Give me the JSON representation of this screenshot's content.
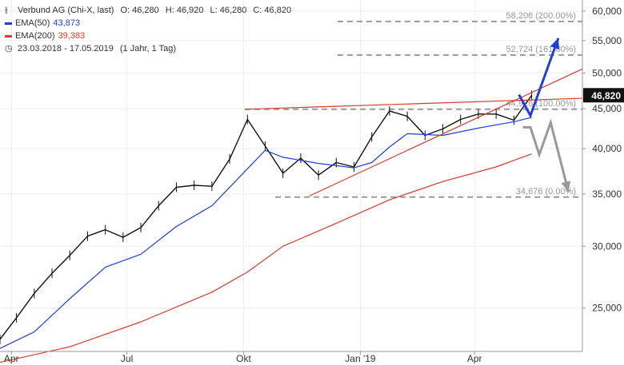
{
  "header": {
    "instrument": "Verbund AG (Chi-X, last)",
    "open": "O: 46,280",
    "high": "H: 46,920",
    "low": "L: 46,280",
    "close": "C: 46,820",
    "ema50_label": "EMA(50)",
    "ema50_value": "43,873",
    "ema200_label": "EMA(200)",
    "ema200_value": "39,383",
    "period": "23.03.2018 - 17.05.2019",
    "interval": "(1 Jahr, 1 Tag)",
    "candles_icon": "candlestick-icon",
    "clock_icon": "clock-icon"
  },
  "chart_data": {
    "type": "line",
    "y_scale": "log",
    "ylim": [
      22000,
      62000
    ],
    "y_ticks": [
      {
        "value": 25000,
        "label": "25,000"
      },
      {
        "value": 30000,
        "label": "30,000"
      },
      {
        "value": 35000,
        "label": "35,000"
      },
      {
        "value": 40000,
        "label": "40,000"
      },
      {
        "value": 45000,
        "label": "45,000"
      },
      {
        "value": 50000,
        "label": "50,000"
      },
      {
        "value": 55000,
        "label": "55,000"
      },
      {
        "value": 60000,
        "label": "60,000"
      }
    ],
    "x_ticks": [
      {
        "date": "2018-04-01",
        "label": "Apr"
      },
      {
        "date": "2018-07-01",
        "label": "Jul"
      },
      {
        "date": "2018-10-01",
        "label": "Okt"
      },
      {
        "date": "2019-01-01",
        "label": "Jan '19"
      },
      {
        "date": "2019-04-01",
        "label": "Apr"
      }
    ],
    "xlim": [
      "2018-03-23",
      "2019-06-25"
    ],
    "last_price": {
      "value": 46820,
      "label": "46,820"
    },
    "series": [
      {
        "name": "Verbund AG",
        "color": "#111111",
        "points": [
          [
            "2018-03-23",
            22800
          ],
          [
            "2018-04-05",
            24300
          ],
          [
            "2018-04-19",
            26100
          ],
          [
            "2018-05-03",
            27700
          ],
          [
            "2018-05-17",
            29200
          ],
          [
            "2018-05-31",
            30900
          ],
          [
            "2018-06-14",
            31500
          ],
          [
            "2018-06-28",
            30800
          ],
          [
            "2018-07-12",
            31700
          ],
          [
            "2018-07-26",
            33800
          ],
          [
            "2018-08-09",
            35700
          ],
          [
            "2018-08-23",
            35900
          ],
          [
            "2018-09-06",
            35800
          ],
          [
            "2018-09-20",
            38800
          ],
          [
            "2018-10-04",
            43600
          ],
          [
            "2018-10-18",
            40300
          ],
          [
            "2018-11-01",
            37200
          ],
          [
            "2018-11-15",
            38900
          ],
          [
            "2018-11-29",
            37000
          ],
          [
            "2018-12-13",
            38400
          ],
          [
            "2018-12-27",
            37900
          ],
          [
            "2019-01-10",
            41400
          ],
          [
            "2019-01-24",
            44700
          ],
          [
            "2019-02-07",
            44000
          ],
          [
            "2019-02-21",
            41600
          ],
          [
            "2019-03-07",
            42400
          ],
          [
            "2019-03-21",
            43600
          ],
          [
            "2019-04-04",
            44300
          ],
          [
            "2019-04-18",
            44300
          ],
          [
            "2019-05-02",
            43500
          ],
          [
            "2019-05-16",
            46820
          ]
        ]
      },
      {
        "name": "EMA(50)",
        "color": "#1f3fd8",
        "points": [
          [
            "2018-03-23",
            22200
          ],
          [
            "2018-04-19",
            23300
          ],
          [
            "2018-05-17",
            25700
          ],
          [
            "2018-06-14",
            28200
          ],
          [
            "2018-07-12",
            29300
          ],
          [
            "2018-08-09",
            31800
          ],
          [
            "2018-09-06",
            33800
          ],
          [
            "2018-10-04",
            37700
          ],
          [
            "2018-10-18",
            39800
          ],
          [
            "2018-11-01",
            39000
          ],
          [
            "2018-11-29",
            38300
          ],
          [
            "2018-12-27",
            37800
          ],
          [
            "2019-01-10",
            38400
          ],
          [
            "2019-01-24",
            40200
          ],
          [
            "2019-02-07",
            41800
          ],
          [
            "2019-03-07",
            41600
          ],
          [
            "2019-04-04",
            42500
          ],
          [
            "2019-05-02",
            43300
          ],
          [
            "2019-05-16",
            43873
          ]
        ]
      },
      {
        "name": "EMA(200)",
        "color": "#d93a2b",
        "points": [
          [
            "2018-03-23",
            21300
          ],
          [
            "2018-05-17",
            22300
          ],
          [
            "2018-07-12",
            24000
          ],
          [
            "2018-09-06",
            26200
          ],
          [
            "2018-10-04",
            27800
          ],
          [
            "2018-11-01",
            30000
          ],
          [
            "2018-12-13",
            32100
          ],
          [
            "2019-01-24",
            34400
          ],
          [
            "2019-03-07",
            36300
          ],
          [
            "2019-04-18",
            37900
          ],
          [
            "2019-05-16",
            39383
          ]
        ]
      }
    ],
    "levels": [
      {
        "value": 58206,
        "label": "58,206 (200.00%)",
        "from": "2018-12-14",
        "to": "2019-06-25"
      },
      {
        "value": 52724,
        "label": "52,724 (161.80%)",
        "from": "2018-12-14",
        "to": "2019-06-25"
      },
      {
        "value": 44926,
        "label": "44,926 (100.00%)",
        "from": "2018-10-02",
        "to": "2019-06-25"
      },
      {
        "value": 34676,
        "label": "34,676 (0.00%)",
        "from": "2018-10-26",
        "to": "2019-06-25"
      }
    ],
    "trendlines": [
      {
        "color": "#d93a2b",
        "from": [
          "2018-10-02",
          44926
        ],
        "to": [
          "2019-06-25",
          46400
        ]
      },
      {
        "color": "#d93a2b",
        "from": [
          "2018-11-22",
          34800
        ],
        "to": [
          "2019-06-25",
          50600
        ]
      }
    ],
    "projections": [
      {
        "color": "#1f3fd8",
        "points": [
          [
            "2019-05-06",
            46900
          ],
          [
            "2019-05-15",
            44100
          ],
          [
            "2019-06-06",
            55400
          ]
        ]
      },
      {
        "color": "#999999",
        "points": [
          [
            "2019-05-09",
            42600
          ],
          [
            "2019-05-15",
            42600
          ],
          [
            "2019-05-22",
            39300
          ],
          [
            "2019-05-31",
            43200
          ],
          [
            "2019-06-14",
            35200
          ]
        ]
      }
    ]
  }
}
